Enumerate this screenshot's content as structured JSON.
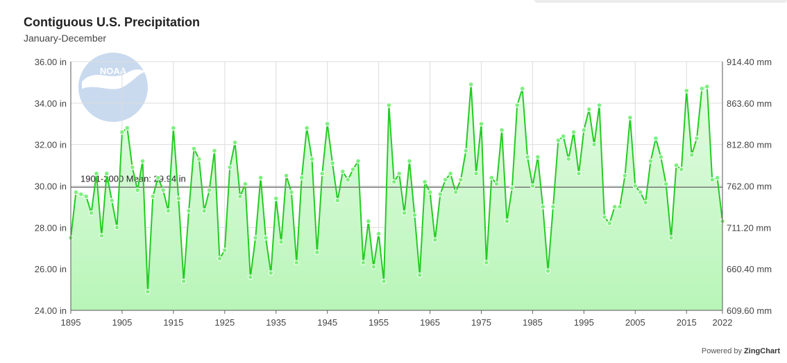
{
  "title": "Contiguous U.S. Precipitation",
  "subtitle": "January-December",
  "powered_by": {
    "prefix": "Powered by",
    "brand": "ZingChart"
  },
  "logo_text": "NOAA",
  "colors": {
    "line": "#22cc22",
    "fill": "#b8f5b8",
    "marker": "#7ef07e",
    "grid": "#dcdcdc",
    "mean_line": "#777777"
  },
  "chart_data": {
    "type": "area",
    "title": "Contiguous U.S. Precipitation",
    "subtitle": "January-December",
    "x_start": 1895,
    "x_end": 2022,
    "xlim": [
      1895,
      2022
    ],
    "ylim": [
      24,
      36
    ],
    "grid": true,
    "x_ticks": [
      "1895",
      "1905",
      "1915",
      "1925",
      "1935",
      "1945",
      "1955",
      "1965",
      "1975",
      "1985",
      "1995",
      "2005",
      "2015",
      "2022"
    ],
    "y_ticks_left": [
      "24.00 in",
      "26.00 in",
      "28.00 in",
      "30.00 in",
      "32.00 in",
      "34.00 in",
      "36.00 in"
    ],
    "y_ticks_right": [
      "609.60 mm",
      "660.40 mm",
      "711.20 mm",
      "762.00 mm",
      "812.80 mm",
      "863.60 mm",
      "914.40 mm"
    ],
    "mean": {
      "label": "1901-2000 Mean: 29.94 in",
      "value": 29.94
    },
    "series": [
      {
        "values": [
          27.5,
          29.7,
          29.6,
          29.5,
          28.7,
          30.6,
          27.6,
          30.6,
          29.3,
          28.0,
          32.6,
          32.8,
          30.9,
          29.8,
          31.2,
          24.9,
          29.5,
          30.4,
          29.8,
          28.8,
          32.8,
          29.4,
          25.4,
          28.8,
          31.8,
          31.3,
          28.8,
          29.8,
          31.7,
          26.5,
          26.9,
          30.9,
          32.1,
          29.5,
          30.1,
          25.6,
          27.5,
          30.4,
          27.5,
          25.8,
          29.4,
          27.3,
          30.5,
          29.7,
          26.3,
          30.4,
          32.8,
          31.3,
          26.8,
          30.6,
          33.0,
          31.1,
          29.3,
          30.7,
          30.3,
          30.8,
          31.2,
          26.3,
          28.3,
          26.1,
          27.7,
          25.4,
          33.9,
          30.2,
          30.6,
          28.7,
          31.2,
          28.6,
          25.7,
          30.2,
          29.7,
          27.4,
          29.6,
          30.3,
          30.6,
          29.7,
          30.3,
          31.7,
          34.9,
          30.6,
          33.0,
          26.3,
          30.4,
          30.1,
          32.7,
          28.3,
          29.9,
          33.9,
          34.7,
          31.4,
          30.0,
          31.4,
          29.0,
          25.9,
          29.0,
          32.2,
          32.4,
          31.3,
          32.6,
          30.6,
          32.7,
          33.7,
          32.0,
          33.9,
          28.5,
          28.2,
          29.0,
          29.0,
          30.5,
          33.3,
          30.0,
          29.7,
          29.2,
          31.2,
          32.3,
          31.4,
          30.1,
          27.5,
          31.0,
          30.8,
          34.6,
          31.5,
          32.3,
          34.7,
          34.8,
          30.3,
          30.4,
          28.3
        ]
      }
    ]
  }
}
